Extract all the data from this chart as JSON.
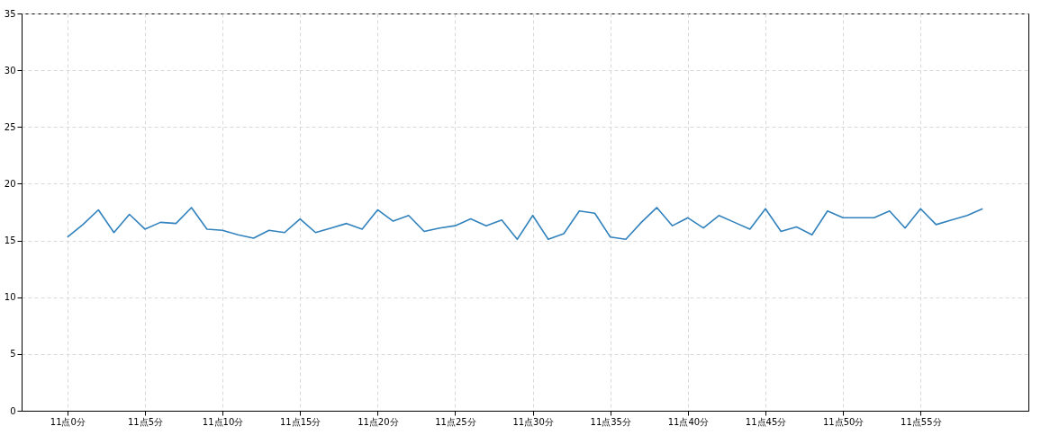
{
  "chart_data": {
    "type": "line",
    "categories": [
      "11点0分",
      null,
      null,
      null,
      null,
      "11点5分",
      null,
      null,
      null,
      null,
      "11点10分",
      null,
      null,
      null,
      null,
      "11点15分",
      null,
      null,
      null,
      null,
      "11点20分",
      null,
      null,
      null,
      null,
      "11点25分",
      null,
      null,
      null,
      null,
      "11点30分",
      null,
      null,
      null,
      null,
      "11点35分",
      null,
      null,
      null,
      null,
      "11点40分",
      null,
      null,
      null,
      null,
      "11点45分",
      null,
      null,
      null,
      null,
      "11点50分",
      null,
      null,
      null,
      null,
      "11点55分",
      null,
      null,
      null,
      null
    ],
    "series": [
      {
        "color": "#3182bd",
        "values": [
          15.3,
          16.4,
          17.7,
          15.7,
          17.3,
          16.0,
          16.6,
          16.5,
          17.9,
          16.0,
          15.9,
          15.5,
          15.2,
          15.9,
          15.7,
          16.9,
          15.7,
          16.1,
          16.5,
          16.0,
          17.7,
          16.7,
          17.2,
          15.8,
          16.1,
          16.3,
          16.9,
          16.3,
          16.8,
          15.1,
          17.2,
          15.1,
          15.6,
          17.6,
          17.4,
          15.3,
          15.1,
          16.6,
          17.9,
          16.3,
          17.0,
          16.1,
          17.2,
          16.6,
          16.0,
          17.8,
          15.8,
          16.2,
          15.5,
          17.6,
          17.0,
          17.0,
          17.0,
          17.6,
          16.1,
          17.8,
          16.4,
          16.8,
          17.2,
          17.8
        ]
      }
    ],
    "ylim": [
      0,
      35
    ],
    "yticks": [
      0,
      5,
      10,
      15,
      20,
      25,
      30,
      35
    ],
    "grid": true,
    "line_style": "solid",
    "marker": "none"
  }
}
